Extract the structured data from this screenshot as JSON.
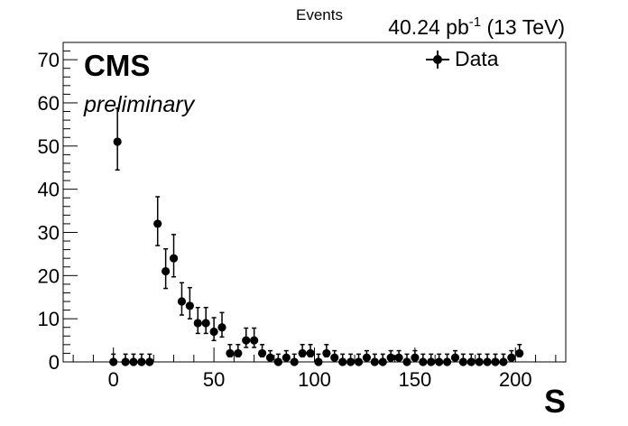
{
  "chart_data": {
    "type": "scatter",
    "title": "",
    "ylabel": "Events",
    "xlabel": "S",
    "lumi_label": "40.24 pb",
    "lumi_exponent": "-1",
    "energy_label": " (13 TeV)",
    "experiment": "CMS",
    "status": "preliminary",
    "legend": {
      "placement": "top-right",
      "entries": [
        "Data"
      ]
    },
    "xlim": [
      -25,
      225
    ],
    "ylim": [
      0,
      74
    ],
    "xticks": [
      0,
      50,
      100,
      150,
      200
    ],
    "yticks": [
      0,
      10,
      20,
      30,
      40,
      50,
      60,
      70
    ],
    "grid": false,
    "marker_color": "#000000",
    "series": [
      {
        "name": "Data",
        "x": [
          0,
          2,
          6,
          10,
          14,
          18,
          22,
          26,
          30,
          34,
          38,
          42,
          46,
          50,
          54,
          58,
          62,
          66,
          70,
          74,
          78,
          82,
          86,
          90,
          94,
          98,
          102,
          106,
          110,
          114,
          118,
          122,
          126,
          130,
          134,
          138,
          142,
          146,
          150,
          154,
          158,
          162,
          166,
          170,
          174,
          178,
          182,
          186,
          190,
          194,
          198,
          202
        ],
        "y": [
          0,
          51,
          0,
          0,
          0,
          0,
          32,
          21,
          24,
          14,
          13,
          9,
          9,
          7,
          8,
          2,
          2,
          5,
          5,
          2,
          1,
          0,
          1,
          0,
          2,
          2,
          0,
          2,
          1,
          0,
          0,
          0,
          1,
          0,
          0,
          1,
          1,
          0,
          1,
          0,
          0,
          0,
          0,
          1,
          0,
          0,
          0,
          0,
          0,
          0,
          1,
          2
        ]
      }
    ]
  }
}
